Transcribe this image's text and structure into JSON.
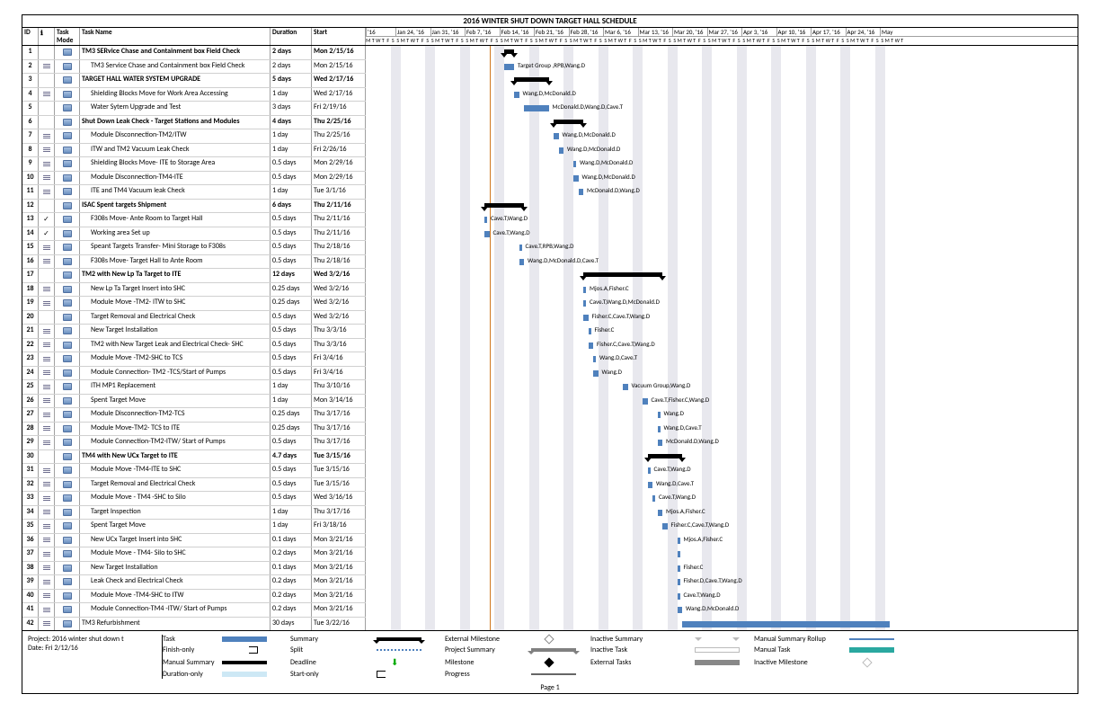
{
  "title": "2016 WINTER SHUT DOWN TARGET HALL SCHEDULE",
  "columns": {
    "id": "ID",
    "info": "",
    "taskMode": "Task Mode",
    "taskName": "Task Name",
    "duration": "Duration",
    "start": "Start"
  },
  "chart": {
    "start": "2016-01-18",
    "weeks": 15,
    "pxPerDay": 5.5,
    "weekHeaders": [
      "'16",
      "Jan 24, '16",
      "Jan 31, '16",
      "Feb 7, '16",
      "Feb 14, '16",
      "Feb 21, '16",
      "Feb 28, '16",
      "Mar 6, '16",
      "Mar 13, '16",
      "Mar 20, '16",
      "Mar 27, '16",
      "Apr 3, '16",
      "Apr 10, '16",
      "Apr 17, '16",
      "Apr 24, '16",
      "May"
    ],
    "dayLetters": [
      "S",
      "M",
      "T",
      "W",
      "T",
      "F",
      "S"
    ],
    "today": "2016-02-12",
    "colors": {
      "bar": "#4f81bd",
      "summary": "#000000",
      "weekend": "#e8e8ee",
      "todayLine": "#d07820"
    }
  },
  "tasks": [
    {
      "id": 1,
      "name": "TM3 SERvice Chase  and Containment box  Field Check",
      "dur": "2 days",
      "start": "Mon 2/15/16",
      "type": "summary",
      "barStart": "2016-02-15",
      "barEnd": "2016-02-17",
      "indent": 0,
      "info": ""
    },
    {
      "id": 2,
      "name": "TM3 Service Chase  and Containment box  Field Check",
      "dur": "2 days",
      "start": "Mon 2/15/16",
      "type": "task",
      "barStart": "2016-02-15",
      "barEnd": "2016-02-17",
      "indent": 1,
      "info": "notes",
      "label": "Target Group ,RPB,Wang.D"
    },
    {
      "id": 3,
      "name": "TARGET HALL WATER SYSTEM UPGRADE",
      "dur": "5 days",
      "start": "Wed 2/17/16",
      "type": "summary",
      "barStart": "2016-02-17",
      "barEnd": "2016-02-24",
      "indent": 0,
      "info": ""
    },
    {
      "id": 4,
      "name": "Shielding Blocks Move for  Work  Area Accessing",
      "dur": "1 day",
      "start": "Wed 2/17/16",
      "type": "task",
      "barStart": "2016-02-17",
      "barEnd": "2016-02-18",
      "indent": 1,
      "info": "notes",
      "label": "Wang.D,McDonald.D"
    },
    {
      "id": 5,
      "name": "Water Sytem Upgrade and Test",
      "dur": "3 days",
      "start": "Fri 2/19/16",
      "type": "task",
      "barStart": "2016-02-19",
      "barEnd": "2016-02-24",
      "indent": 1,
      "info": "",
      "label": "McDonald.D,Wang.D,Cave.T"
    },
    {
      "id": 6,
      "name": "Shut Down Leak Check - Target Stations and Modules",
      "dur": "4 days",
      "start": "Thu 2/25/16",
      "type": "summary",
      "barStart": "2016-02-25",
      "barEnd": "2016-03-02",
      "indent": 0,
      "info": ""
    },
    {
      "id": 7,
      "name": "Module Disconnection-TM2/ITW",
      "dur": "1 day",
      "start": "Thu 2/25/16",
      "type": "task",
      "barStart": "2016-02-25",
      "barEnd": "2016-02-26",
      "indent": 1,
      "info": "notes",
      "label": "Wang.D,McDonald.D"
    },
    {
      "id": 8,
      "name": "ITW and TM2 Vacuum Leak Check",
      "dur": "1 day",
      "start": "Fri 2/26/16",
      "type": "task",
      "barStart": "2016-02-26",
      "barEnd": "2016-02-27",
      "indent": 1,
      "info": "notes",
      "label": "Wang.D,McDonald.D"
    },
    {
      "id": 9,
      "name": "Shielding Blocks Move- ITE to Storage Area",
      "dur": "0.5 days",
      "start": "Mon 2/29/16",
      "type": "task",
      "barStart": "2016-02-29",
      "barEnd": "2016-02-29",
      "indent": 1,
      "info": "notes",
      "label": "Wang.D,McDonald.D"
    },
    {
      "id": 10,
      "name": "Module Disconnection-TM4-ITE",
      "dur": "0.5 days",
      "start": "Mon 2/29/16",
      "type": "task",
      "barStart": "2016-02-29",
      "barEnd": "2016-03-01",
      "indent": 1,
      "info": "notes",
      "label": "Wang.D,McDonald.D"
    },
    {
      "id": 11,
      "name": "ITE and TM4 Vacuum leak Check",
      "dur": "1 day",
      "start": "Tue 3/1/16",
      "type": "task",
      "barStart": "2016-03-01",
      "barEnd": "2016-03-02",
      "indent": 1,
      "info": "notes",
      "label": "McDonald.D,Wang.D"
    },
    {
      "id": 12,
      "name": "ISAC Spent targets Shipment",
      "dur": "6 days",
      "start": "Thu 2/11/16",
      "type": "summary",
      "barStart": "2016-02-11",
      "barEnd": "2016-02-19",
      "indent": 0,
      "info": ""
    },
    {
      "id": 13,
      "name": "F308s Move- Ante Room to Target Hall",
      "dur": "0.5 days",
      "start": "Thu 2/11/16",
      "type": "task",
      "barStart": "2016-02-11",
      "barEnd": "2016-02-11",
      "indent": 1,
      "info": "check",
      "label": "Cave.T,Wang.D"
    },
    {
      "id": 14,
      "name": "Working area Set up",
      "dur": "0.5 days",
      "start": "Thu 2/11/16",
      "type": "task",
      "barStart": "2016-02-11",
      "barEnd": "2016-02-12",
      "indent": 1,
      "info": "check",
      "label": "Cave.T,Wang.D"
    },
    {
      "id": 15,
      "name": "Speant Targets  Transfer- Mini Storage to F308s",
      "dur": "0.5 days",
      "start": "Thu 2/18/16",
      "type": "task",
      "barStart": "2016-02-18",
      "barEnd": "2016-02-18",
      "indent": 1,
      "info": "notes",
      "label": "Cave.T,RPB,Wang.D"
    },
    {
      "id": 16,
      "name": "F308s Move-  Target Hall to Ante Room",
      "dur": "0.5 days",
      "start": "Thu 2/18/16",
      "type": "task",
      "barStart": "2016-02-18",
      "barEnd": "2016-02-19",
      "indent": 1,
      "info": "notes",
      "label": "Wang.D,McDonald.D,Cave.T"
    },
    {
      "id": 17,
      "name": "TM2 with New Lp Ta Target to ITE",
      "dur": "12 days",
      "start": "Wed 3/2/16",
      "type": "summary",
      "barStart": "2016-03-02",
      "barEnd": "2016-03-18",
      "indent": 0,
      "info": ""
    },
    {
      "id": 18,
      "name": "New Lp Ta Target Insert into SHC",
      "dur": "0.25 days",
      "start": "Wed 3/2/16",
      "type": "task",
      "barStart": "2016-03-02",
      "barEnd": "2016-03-02",
      "indent": 1,
      "info": "notes",
      "label": "Mjos.A,Fisher.C"
    },
    {
      "id": 19,
      "name": "Module Move -TM2- ITW to SHC",
      "dur": "0.25 days",
      "start": "Wed 3/2/16",
      "type": "task",
      "barStart": "2016-03-02",
      "barEnd": "2016-03-02",
      "indent": 1,
      "info": "notes",
      "label": "Cave.T,Wang.D,McDonald.D"
    },
    {
      "id": 20,
      "name": "Target Removal and Electrical Check",
      "dur": "0.5 days",
      "start": "Wed 3/2/16",
      "type": "task",
      "barStart": "2016-03-02",
      "barEnd": "2016-03-03",
      "indent": 1,
      "info": "",
      "label": "Fisher.C,Cave.T,Wang.D"
    },
    {
      "id": 21,
      "name": "New Target Installation",
      "dur": "0.5 days",
      "start": "Thu 3/3/16",
      "type": "task",
      "barStart": "2016-03-03",
      "barEnd": "2016-03-03",
      "indent": 1,
      "info": "notes",
      "label": "Fisher.C"
    },
    {
      "id": 22,
      "name": "TM2 with New Target Leak and Electrical Check- SHC",
      "dur": "0.5 days",
      "start": "Thu 3/3/16",
      "type": "task",
      "barStart": "2016-03-03",
      "barEnd": "2016-03-04",
      "indent": 1,
      "info": "notes",
      "label": "Fisher.C,Cave.T,Wang.D"
    },
    {
      "id": 23,
      "name": "Module Move -TM2-SHC to TCS",
      "dur": "0.5 days",
      "start": "Fri 3/4/16",
      "type": "task",
      "barStart": "2016-03-04",
      "barEnd": "2016-03-04",
      "indent": 1,
      "info": "notes",
      "label": "Wang.D,Cave.T"
    },
    {
      "id": 24,
      "name": "Module Connection- TM2 -TCS/Start of Pumps",
      "dur": "0.5 days",
      "start": "Fri 3/4/16",
      "type": "task",
      "barStart": "2016-03-04",
      "barEnd": "2016-03-05",
      "indent": 1,
      "info": "notes",
      "label": "Wang.D"
    },
    {
      "id": 25,
      "name": "ITH MP1 Replacement",
      "dur": "1 day",
      "start": "Thu 3/10/16",
      "type": "task",
      "barStart": "2016-03-10",
      "barEnd": "2016-03-11",
      "indent": 1,
      "info": "notes",
      "label": "Vacuum Group,Wang.D"
    },
    {
      "id": 26,
      "name": "Spent Target Move",
      "dur": "1 day",
      "start": "Mon 3/14/16",
      "type": "task",
      "barStart": "2016-03-14",
      "barEnd": "2016-03-15",
      "indent": 1,
      "info": "notes",
      "label": "Cave.T,Fisher.C,Wang.D"
    },
    {
      "id": 27,
      "name": "Module Disconnection-TM2-TCS",
      "dur": "0.25 days",
      "start": "Thu 3/17/16",
      "type": "task",
      "barStart": "2016-03-17",
      "barEnd": "2016-03-17",
      "indent": 1,
      "info": "notes",
      "label": "Wang.D"
    },
    {
      "id": 28,
      "name": "Module Move-TM2- TCS to ITE",
      "dur": "0.25 days",
      "start": "Thu 3/17/16",
      "type": "task",
      "barStart": "2016-03-17",
      "barEnd": "2016-03-17",
      "indent": 1,
      "info": "notes",
      "label": "Wang.D,Cave.T"
    },
    {
      "id": 29,
      "name": "Module Connection-TM2-ITW/ Start of Pumps",
      "dur": "0.5 days",
      "start": "Thu 3/17/16",
      "type": "task",
      "barStart": "2016-03-17",
      "barEnd": "2016-03-18",
      "indent": 1,
      "info": "notes",
      "label": "McDonald.D,Wang.D"
    },
    {
      "id": 30,
      "name": "TM4 with New UCx Target to ITE",
      "dur": "4.7 days",
      "start": "Tue 3/15/16",
      "type": "summary",
      "barStart": "2016-03-15",
      "barEnd": "2016-03-22",
      "indent": 0,
      "info": ""
    },
    {
      "id": 31,
      "name": "Module Move -TM4-ITE to SHC",
      "dur": "0.5 days",
      "start": "Tue 3/15/16",
      "type": "task",
      "barStart": "2016-03-15",
      "barEnd": "2016-03-15",
      "indent": 1,
      "info": "notes",
      "label": "Cave.T,Wang.D"
    },
    {
      "id": 32,
      "name": "Target Removal and Electrical Check",
      "dur": "0.5 days",
      "start": "Tue 3/15/16",
      "type": "task",
      "barStart": "2016-03-15",
      "barEnd": "2016-03-16",
      "indent": 1,
      "info": "notes",
      "label": "Wang.D,Cave.T"
    },
    {
      "id": 33,
      "name": "Module Move - TM4 -SHC to Silo",
      "dur": "0.5 days",
      "start": "Wed 3/16/16",
      "type": "task",
      "barStart": "2016-03-16",
      "barEnd": "2016-03-16",
      "indent": 1,
      "info": "notes",
      "label": "Cave.T,Wang.D"
    },
    {
      "id": 34,
      "name": "Target Inspection",
      "dur": "1 day",
      "start": "Thu 3/17/16",
      "type": "task",
      "barStart": "2016-03-17",
      "barEnd": "2016-03-18",
      "indent": 1,
      "info": "notes",
      "label": "Mjos.A,Fisher.C"
    },
    {
      "id": 35,
      "name": "Spent Target Move",
      "dur": "1 day",
      "start": "Fri 3/18/16",
      "type": "task",
      "barStart": "2016-03-18",
      "barEnd": "2016-03-19",
      "indent": 1,
      "info": "notes",
      "label": "Fisher.C,Cave.T,Wang.D"
    },
    {
      "id": 36,
      "name": "New UCx Target Insert into SHC",
      "dur": "0.1 days",
      "start": "Mon 3/21/16",
      "type": "task",
      "barStart": "2016-03-21",
      "barEnd": "2016-03-21",
      "indent": 1,
      "info": "notes",
      "label": "Mjos.A,Fisher.C"
    },
    {
      "id": 37,
      "name": "Module Move - TM4-  Silo to SHC",
      "dur": "0.2 days",
      "start": "Mon 3/21/16",
      "type": "task",
      "barStart": "2016-03-21",
      "barEnd": "2016-03-21",
      "indent": 1,
      "info": "notes",
      "label": ""
    },
    {
      "id": 38,
      "name": "New Target Installation",
      "dur": "0.1 days",
      "start": "Mon 3/21/16",
      "type": "task",
      "barStart": "2016-03-21",
      "barEnd": "2016-03-21",
      "indent": 1,
      "info": "notes",
      "label": "Fisher.C"
    },
    {
      "id": 39,
      "name": "Leak Check and Electrical Check",
      "dur": "0.2 days",
      "start": "Mon 3/21/16",
      "type": "task",
      "barStart": "2016-03-21",
      "barEnd": "2016-03-21",
      "indent": 1,
      "info": "notes",
      "label": "Fisher.D,Cave.T,Wang.D"
    },
    {
      "id": 40,
      "name": "Module Move -TM4-SHC to ITW",
      "dur": "0.2 days",
      "start": "Mon 3/21/16",
      "type": "task",
      "barStart": "2016-03-21",
      "barEnd": "2016-03-21",
      "indent": 1,
      "info": "notes",
      "label": "Cave.T,Wang.D"
    },
    {
      "id": 41,
      "name": "Module Connection-TM4 -ITW/ Start of Pumps",
      "dur": "0.2 days",
      "start": "Mon 3/21/16",
      "type": "task",
      "barStart": "2016-03-21",
      "barEnd": "2016-03-22",
      "indent": 1,
      "info": "notes",
      "label": "Wang.D,McDonald.D"
    },
    {
      "id": 42,
      "name": "TM3 Refurbishment",
      "dur": "30 days",
      "start": "Tue 3/22/16",
      "type": "task",
      "barStart": "2016-03-22",
      "barEnd": "2016-05-03",
      "indent": 0,
      "info": "notes",
      "label": ""
    }
  ],
  "footer": {
    "project": "Project: 2016 winter shut down t",
    "date": "Date: Fri 2/12/16",
    "page": "Page 1"
  },
  "legend": [
    {
      "label": "Task",
      "cls": "lg-task"
    },
    {
      "label": "Summary",
      "cls": "lg-sum"
    },
    {
      "label": "External Milestone",
      "cls": "lg-emile"
    },
    {
      "label": "Inactive Summary",
      "cls": "lg-isum"
    },
    {
      "label": "Manual Summary Rollup",
      "cls": "lg-msr"
    },
    {
      "label": "Finish-only",
      "cls": "lg-finish"
    },
    {
      "label": "Split",
      "cls": "lg-split"
    },
    {
      "label": "Project Summary",
      "cls": "lg-psum"
    },
    {
      "label": "Inactive Task",
      "cls": "lg-itask"
    },
    {
      "label": "Manual Task",
      "cls": "lg-manual"
    },
    {
      "label": "Manual Summary",
      "cls": "lg-msum"
    },
    {
      "label": "Deadline",
      "cls": "lg-dead"
    },
    {
      "label": "Milestone",
      "cls": "lg-mile"
    },
    {
      "label": "External Tasks",
      "cls": "lg-ext"
    },
    {
      "label": "Inactive Milestone",
      "cls": "lg-imile"
    },
    {
      "label": "Duration-only",
      "cls": "lg-dur"
    },
    {
      "label": "Start-only",
      "cls": "lg-start"
    },
    {
      "label": "Progress",
      "cls": "lg-prog"
    }
  ]
}
